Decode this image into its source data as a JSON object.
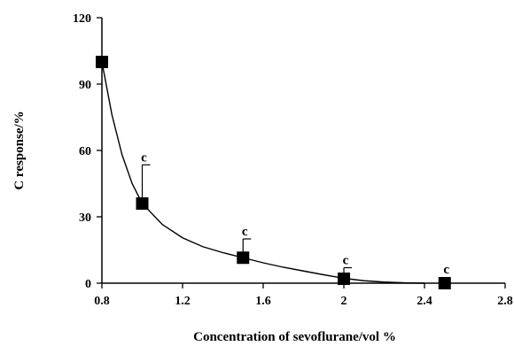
{
  "chart_data": {
    "type": "scatter",
    "title": "",
    "xlabel": "Concentration of sevoflurane/vol %",
    "ylabel": "C response/%",
    "xlim": [
      0.8,
      2.8
    ],
    "ylim": [
      0,
      120
    ],
    "xticks": [
      0.8,
      1.2,
      1.6,
      2.0,
      2.4,
      2.8
    ],
    "xtick_labels": [
      "0.8",
      "1.2",
      "1.6",
      "2",
      "2.4",
      "2.8"
    ],
    "yticks": [
      0,
      30,
      60,
      90,
      120
    ],
    "ytick_labels": [
      "0",
      "30",
      "60",
      "90",
      "120"
    ],
    "grid": false,
    "legend": "none",
    "marker": "filled-square",
    "color": "#000000",
    "series": [
      {
        "x": [
          0.8,
          1.0,
          1.5,
          2.0,
          2.5
        ],
        "y": [
          100,
          36,
          11.5,
          2,
          0
        ],
        "error_upper": [
          0,
          17.5,
          8.5,
          5,
          0
        ],
        "annotations": [
          "",
          "c",
          "c",
          "c",
          "c"
        ]
      }
    ],
    "fit_curve": {
      "x": [
        0.8,
        0.85,
        0.9,
        0.95,
        1.0,
        1.1,
        1.2,
        1.3,
        1.4,
        1.5,
        1.6,
        1.7,
        1.8,
        1.9,
        2.0,
        2.1,
        2.2,
        2.3,
        2.4
      ],
      "y": [
        100,
        76,
        58,
        45,
        36,
        26.5,
        20.5,
        16.5,
        13.8,
        11.5,
        9.2,
        7.2,
        5.5,
        3.8,
        2.2,
        1.1,
        0.5,
        0.15,
        0
      ]
    }
  }
}
